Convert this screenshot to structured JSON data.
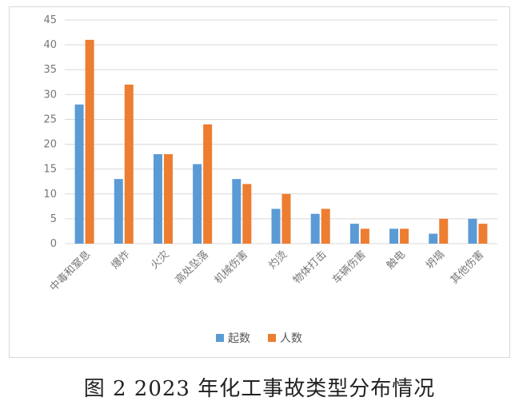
{
  "caption": "图 2   2023 年化工事故类型分布情况",
  "colors": {
    "series1": "#5b9bd5",
    "series2": "#ed7d31",
    "grid": "#d9d9d9",
    "text": "#777777"
  },
  "chart_data": {
    "type": "bar",
    "title": "",
    "xlabel": "",
    "ylabel": "",
    "ylim": [
      0,
      45
    ],
    "yticks": [
      0,
      5,
      10,
      15,
      20,
      25,
      30,
      35,
      40,
      45
    ],
    "grid": true,
    "legend_position": "bottom",
    "categories": [
      "中毒和窒息",
      "爆炸",
      "火灾",
      "高处坠落",
      "机械伤害",
      "灼烫",
      "物体打击",
      "车辆伤害",
      "触电",
      "坍塌",
      "其他伤害"
    ],
    "series": [
      {
        "name": "起数",
        "values": [
          28,
          13,
          18,
          16,
          13,
          7,
          6,
          4,
          3,
          2,
          5
        ]
      },
      {
        "name": "人数",
        "values": [
          41,
          32,
          18,
          24,
          12,
          10,
          7,
          3,
          3,
          5,
          4
        ]
      }
    ]
  }
}
